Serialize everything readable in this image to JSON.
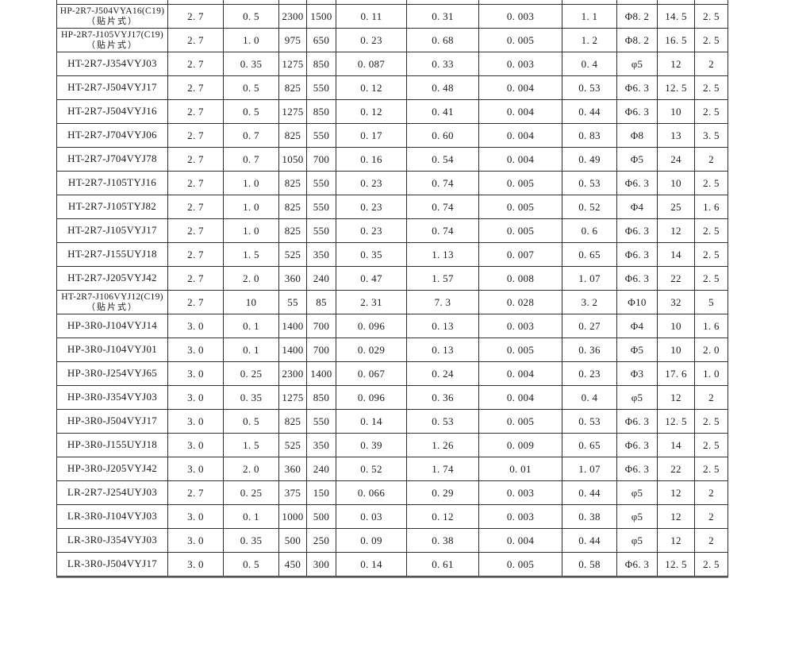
{
  "colors": {
    "page_background": "#ffffff",
    "table_border": "#2f2f2f",
    "text": "#1a1a1a",
    "bottom_shadow": "#7d7d7d"
  },
  "table": {
    "rows": [
      {
        "model": "HP-2R7-J504VYA16(C19)",
        "note": "（贴片式）",
        "values": [
          "2.7",
          "0.5",
          "2300",
          "1500",
          "0.11",
          "0.31",
          "0.003",
          "1.1",
          "Φ8.2",
          "14.5",
          "2.5"
        ]
      },
      {
        "model": "HP-2R7-J105VYJ17(C19)",
        "note": "（贴片式）",
        "values": [
          "2.7",
          "1.0",
          "975",
          "650",
          "0.23",
          "0.68",
          "0.005",
          "1.2",
          "Φ8.2",
          "16.5",
          "2.5"
        ]
      },
      {
        "model": "HT-2R7-J354VYJ03",
        "note": "",
        "values": [
          "2.7",
          "0.35",
          "1275",
          "850",
          "0.087",
          "0.33",
          "0.003",
          "0.4",
          "φ5",
          "12",
          "2"
        ]
      },
      {
        "model": "HT-2R7-J504VYJ17",
        "note": "",
        "values": [
          "2.7",
          "0.5",
          "825",
          "550",
          "0.12",
          "0.48",
          "0.004",
          "0.53",
          "Φ6.3",
          "12.5",
          "2.5"
        ]
      },
      {
        "model": "HT-2R7-J504VYJ16",
        "note": "",
        "values": [
          "2.7",
          "0.5",
          "1275",
          "850",
          "0.12",
          "0.41",
          "0.004",
          "0.44",
          "Φ6.3",
          "10",
          "2.5"
        ]
      },
      {
        "model": "HT-2R7-J704VYJ06",
        "note": "",
        "values": [
          "2.7",
          "0.7",
          "825",
          "550",
          "0.17",
          "0.60",
          "0.004",
          "0.83",
          "Φ8",
          "13",
          "3.5"
        ]
      },
      {
        "model": "HT-2R7-J704VYJ78",
        "note": "",
        "values": [
          "2.7",
          "0.7",
          "1050",
          "700",
          "0.16",
          "0.54",
          "0.004",
          "0.49",
          "Φ5",
          "24",
          "2"
        ]
      },
      {
        "model": "HT-2R7-J105TYJ16",
        "note": "",
        "values": [
          "2.7",
          "1.0",
          "825",
          "550",
          "0.23",
          "0.74",
          "0.005",
          "0.53",
          "Φ6.3",
          "10",
          "2.5"
        ]
      },
      {
        "model": "HT-2R7-J105TYJ82",
        "note": "",
        "values": [
          "2.7",
          "1.0",
          "825",
          "550",
          "0.23",
          "0.74",
          "0.005",
          "0.52",
          "Φ4",
          "25",
          "1.6"
        ]
      },
      {
        "model": "HT-2R7-J105VYJ17",
        "note": "",
        "values": [
          "2.7",
          "1.0",
          "825",
          "550",
          "0.23",
          "0.74",
          "0.005",
          "0.6",
          "Φ6.3",
          "12",
          "2.5"
        ]
      },
      {
        "model": "HT-2R7-J155UYJ18",
        "note": "",
        "values": [
          "2.7",
          "1.5",
          "525",
          "350",
          "0.35",
          "1.13",
          "0.007",
          "0.65",
          "Φ6.3",
          "14",
          "2.5"
        ]
      },
      {
        "model": "HT-2R7-J205VYJ42",
        "note": "",
        "values": [
          "2.7",
          "2.0",
          "360",
          "240",
          "0.47",
          "1.57",
          "0.008",
          "1.07",
          "Φ6.3",
          "22",
          "2.5"
        ]
      },
      {
        "model": "HT-2R7-J106VYJ12(C19)",
        "note": "（贴片式）",
        "values": [
          "2.7",
          "10",
          "55",
          "85",
          "2.31",
          "7.3",
          "0.028",
          "3.2",
          "Φ10",
          "32",
          "5"
        ]
      },
      {
        "model": "HP-3R0-J104VYJ14",
        "note": "",
        "values": [
          "3.0",
          "0.1",
          "1400",
          "700",
          "0.096",
          "0.13",
          "0.003",
          "0.27",
          "Φ4",
          "10",
          "1.6"
        ]
      },
      {
        "model": "HP-3R0-J104VYJ01",
        "note": "",
        "values": [
          "3.0",
          "0.1",
          "1400",
          "700",
          "0.029",
          "0.13",
          "0.005",
          "0.36",
          "Φ5",
          "10",
          "2.0"
        ]
      },
      {
        "model": "HP-3R0-J254VYJ65",
        "note": "",
        "values": [
          "3.0",
          "0.25",
          "2300",
          "1400",
          "0.067",
          "0.24",
          "0.004",
          "0.23",
          "Φ3",
          "17.6",
          "1.0"
        ]
      },
      {
        "model": "HP-3R0-J354VYJ03",
        "note": "",
        "values": [
          "3.0",
          "0.35",
          "1275",
          "850",
          "0.096",
          "0.36",
          "0.004",
          "0.4",
          "φ5",
          "12",
          "2"
        ]
      },
      {
        "model": "HP-3R0-J504VYJ17",
        "note": "",
        "values": [
          "3.0",
          "0.5",
          "825",
          "550",
          "0.14",
          "0.53",
          "0.005",
          "0.53",
          "Φ6.3",
          "12.5",
          "2.5"
        ]
      },
      {
        "model": "HP-3R0-J155UYJ18",
        "note": "",
        "values": [
          "3.0",
          "1.5",
          "525",
          "350",
          "0.39",
          "1.26",
          "0.009",
          "0.65",
          "Φ6.3",
          "14",
          "2.5"
        ]
      },
      {
        "model": "HP-3R0-J205VYJ42",
        "note": "",
        "values": [
          "3.0",
          "2.0",
          "360",
          "240",
          "0.52",
          "1.74",
          "0.01",
          "1.07",
          "Φ6.3",
          "22",
          "2.5"
        ]
      },
      {
        "model": "LR-2R7-J254UYJ03",
        "note": "",
        "values": [
          "2.7",
          "0.25",
          "375",
          "150",
          "0.066",
          "0.29",
          "0.003",
          "0.44",
          "φ5",
          "12",
          "2"
        ]
      },
      {
        "model": "LR-3R0-J104VYJ03",
        "note": "",
        "values": [
          "3.0",
          "0.1",
          "1000",
          "500",
          "0.03",
          "0.12",
          "0.003",
          "0.38",
          "φ5",
          "12",
          "2"
        ]
      },
      {
        "model": "LR-3R0-J354VYJ03",
        "note": "",
        "values": [
          "3.0",
          "0.35",
          "500",
          "250",
          "0.09",
          "0.38",
          "0.004",
          "0.44",
          "φ5",
          "12",
          "2"
        ]
      },
      {
        "model": "LR-3R0-J504VYJ17",
        "note": "",
        "values": [
          "3.0",
          "0.5",
          "450",
          "300",
          "0.14",
          "0.61",
          "0.005",
          "0.58",
          "Φ6.3",
          "12.5",
          "2.5"
        ]
      }
    ]
  }
}
